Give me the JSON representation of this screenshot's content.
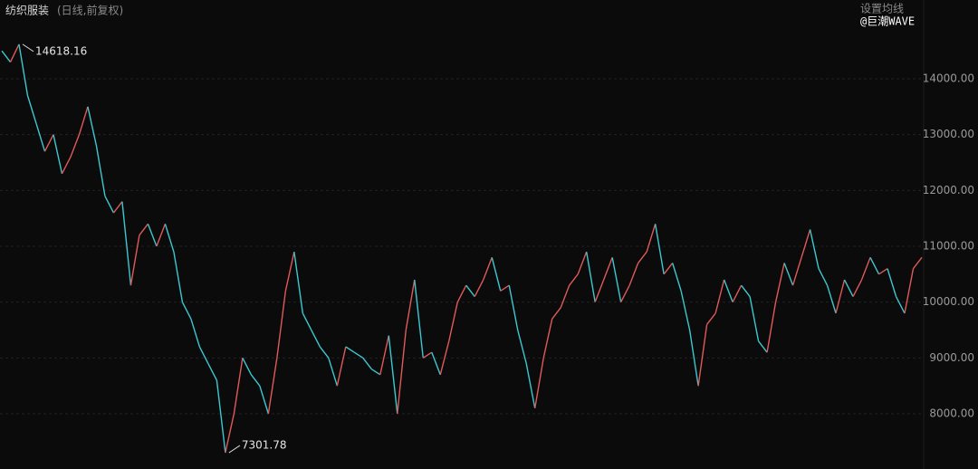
{
  "chart_data": {
    "type": "line",
    "title": "纺织服装",
    "subtitle": "(日线,前复权)",
    "menu": "设置均线",
    "watermark": "@巨潮WAVE",
    "ylim": [
      7011,
      15411
    ],
    "yticks": [
      {
        "value": 8000,
        "label": "8000.00"
      },
      {
        "value": 9000,
        "label": "9000.00"
      },
      {
        "value": 10000,
        "label": "10000.00"
      },
      {
        "value": 11000,
        "label": "11000.00"
      },
      {
        "value": 12000,
        "label": "12000.00"
      },
      {
        "value": 13000,
        "label": "13000.00"
      },
      {
        "value": 14000,
        "label": "14000.00"
      }
    ],
    "grid": true,
    "annotations": [
      {
        "text": "14618.16"
      },
      {
        "text": "7301.78"
      }
    ],
    "series": [
      {
        "name": null,
        "color": "#3cc8d0",
        "down_color": "#e05a5a",
        "values": [
          14500,
          14300,
          14618.16,
          13700,
          13200,
          12700,
          13000,
          12300,
          12600,
          13000,
          13500,
          12800,
          11900,
          11600,
          11800,
          10300,
          11200,
          11400,
          11000,
          11400,
          10900,
          10000,
          9700,
          9200,
          8900,
          8600,
          7301.78,
          8000,
          9000,
          8700,
          8500,
          8000,
          9000,
          10200,
          10900,
          9800,
          9500,
          9200,
          9000,
          8500,
          9200,
          9100,
          9000,
          8800,
          8700,
          9400,
          8000,
          9500,
          10400,
          9000,
          9100,
          8700,
          9300,
          10000,
          10300,
          10100,
          10400,
          10800,
          10200,
          10300,
          9500,
          8900,
          8100,
          9000,
          9700,
          9900,
          10300,
          10500,
          10900,
          10000,
          10400,
          10800,
          10000,
          10300,
          10700,
          10900,
          11400,
          10500,
          10700,
          10200,
          9500,
          8500,
          9600,
          9800,
          10400,
          10000,
          10300,
          10100,
          9300,
          9100,
          10000,
          10700,
          10300,
          10800,
          11300,
          10600,
          10300,
          9800,
          10400,
          10100,
          10400,
          10800,
          10500,
          10600,
          10100,
          9800,
          10600,
          10800
        ]
      }
    ]
  }
}
